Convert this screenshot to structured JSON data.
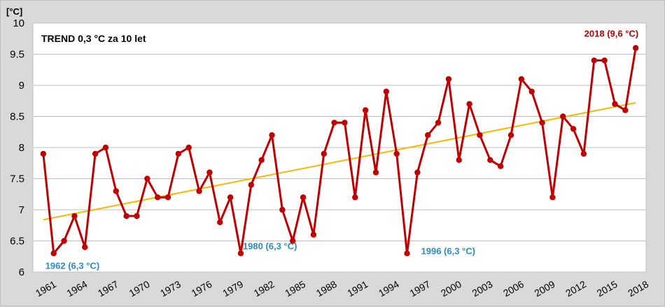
{
  "chart_data": {
    "type": "line",
    "unit_label": "[°C]",
    "trend_label": "TREND  0,3 °C za 10 let",
    "ylim": [
      6,
      10
    ],
    "y_ticks": [
      "6",
      "6.5",
      "7",
      "7.5",
      "8",
      "8.5",
      "9",
      "9.5",
      "10"
    ],
    "x_ticks": [
      "1961",
      "1964",
      "1967",
      "1970",
      "1973",
      "1976",
      "1979",
      "1982",
      "1985",
      "1988",
      "1991",
      "1994",
      "1997",
      "2000",
      "2003",
      "2006",
      "2009",
      "2012",
      "2015",
      "2018"
    ],
    "grid": true,
    "series": [
      {
        "color": "#c00000",
        "x": [
          1961,
          1962,
          1963,
          1964,
          1965,
          1966,
          1967,
          1968,
          1969,
          1970,
          1971,
          1972,
          1973,
          1974,
          1975,
          1976,
          1977,
          1978,
          1979,
          1980,
          1981,
          1982,
          1983,
          1984,
          1985,
          1986,
          1987,
          1988,
          1989,
          1990,
          1991,
          1992,
          1993,
          1994,
          1995,
          1996,
          1997,
          1998,
          1999,
          2000,
          2001,
          2002,
          2003,
          2004,
          2005,
          2006,
          2007,
          2008,
          2009,
          2010,
          2011,
          2012,
          2013,
          2014,
          2015,
          2016,
          2017,
          2018
        ],
        "values": [
          7.9,
          6.3,
          6.5,
          6.9,
          6.4,
          7.9,
          8.0,
          7.3,
          6.9,
          6.9,
          7.5,
          7.2,
          7.2,
          7.9,
          8.0,
          7.3,
          7.6,
          6.8,
          7.2,
          6.3,
          7.4,
          7.8,
          8.2,
          7.0,
          6.5,
          7.2,
          6.6,
          7.9,
          8.4,
          8.4,
          7.2,
          8.6,
          7.6,
          8.9,
          7.9,
          6.3,
          7.6,
          8.2,
          8.4,
          9.1,
          7.8,
          8.7,
          8.2,
          7.8,
          7.7,
          8.2,
          9.1,
          8.9,
          8.4,
          7.2,
          8.5,
          8.3,
          7.9,
          9.4,
          9.4,
          8.7,
          8.6,
          9.6
        ]
      }
    ],
    "trend": {
      "color": "#f5b800",
      "x": [
        1961,
        2018
      ],
      "values": [
        6.84,
        8.72
      ]
    },
    "annotations": [
      {
        "text": "1962 (6,3 °C)",
        "x": 1962,
        "y": 6.3,
        "color": "#2e8bc0"
      },
      {
        "text": "1980 (6,3 °C)",
        "x": 1980,
        "y": 6.3,
        "color": "#2e8bc0"
      },
      {
        "text": "1996 (6,3 °C)",
        "x": 1996,
        "y": 6.3,
        "color": "#2e8bc0"
      },
      {
        "text": "2018 (9,6 °C)",
        "x": 2018,
        "y": 9.6,
        "color": "#c00000"
      }
    ]
  }
}
